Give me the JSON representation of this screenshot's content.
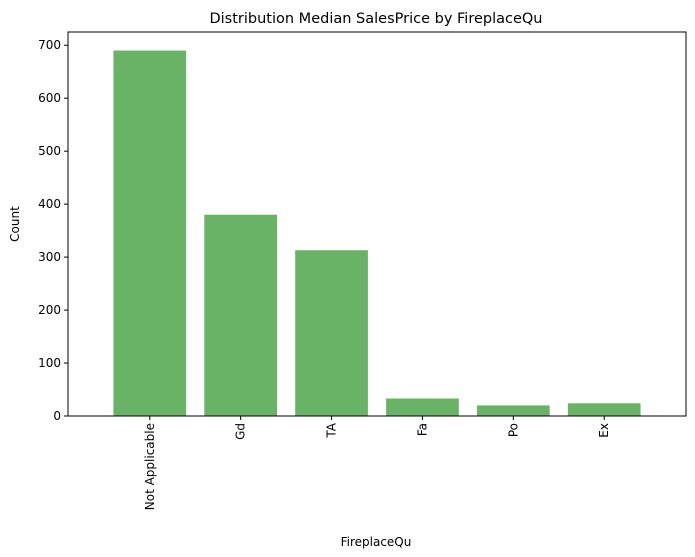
{
  "chart_data": {
    "type": "bar",
    "title": "Distribution Median SalesPrice by FireplaceQu",
    "xlabel": "FireplaceQu",
    "ylabel": "Count",
    "categories": [
      "Not Applicable",
      "Gd",
      "TA",
      "Fa",
      "Po",
      "Ex"
    ],
    "values": [
      690,
      380,
      313,
      33,
      20,
      24
    ],
    "ylim": [
      0,
      725
    ],
    "yticks": [
      0,
      100,
      200,
      300,
      400,
      500,
      600,
      700
    ],
    "ytick_labels": [
      "0",
      "100",
      "200",
      "300",
      "400",
      "500",
      "600",
      "700"
    ],
    "bar_color": "#69b367",
    "grid": false,
    "legend": "none"
  }
}
